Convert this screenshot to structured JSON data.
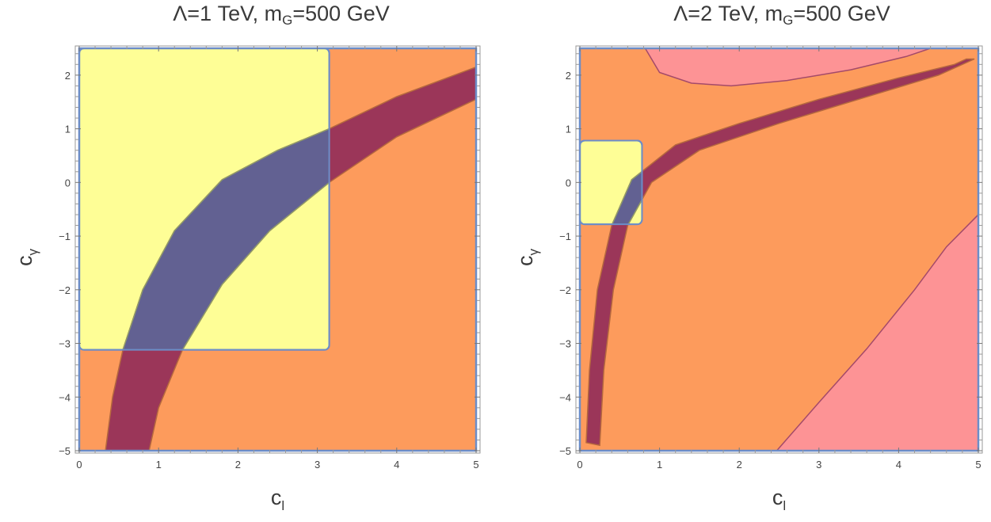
{
  "chart_data": [
    {
      "type": "region",
      "title": {
        "prefix": "Λ=1 TeV, m",
        "sub": "G",
        "suffix": "=500 GeV"
      },
      "xlabel": "c",
      "xlabel_sub": "l",
      "ylabel": "c",
      "ylabel_sub": "γ",
      "xlim": [
        0,
        5
      ],
      "ylim": [
        -5,
        2.5
      ],
      "xticks": [
        0,
        1,
        2,
        3,
        4,
        5
      ],
      "yticks": [
        -5,
        -4,
        -3,
        -2,
        -1,
        0,
        1,
        2
      ],
      "ytick_labels": [
        "−5",
        "−4",
        "−3",
        "−2",
        "−1",
        "0",
        "1",
        "2"
      ],
      "colors": {
        "background": "#fd9b5c",
        "box": "#fefe96",
        "band": "#9b3659",
        "overlap": "#626192",
        "frame": "#6c8dc8",
        "border": "#8a9a78"
      },
      "regions": {
        "box": {
          "x": [
            0,
            3.15
          ],
          "y": [
            -3.12,
            2.5
          ]
        },
        "band_lower": [
          [
            0.88,
            -5
          ],
          [
            1.0,
            -4.2
          ],
          [
            1.3,
            -3.12
          ],
          [
            1.8,
            -1.9
          ],
          [
            2.4,
            -0.9
          ],
          [
            3.15,
            0.0
          ],
          [
            4.0,
            0.85
          ],
          [
            5.0,
            1.55
          ]
        ],
        "band_upper": [
          [
            0.33,
            -5
          ],
          [
            0.42,
            -4.0
          ],
          [
            0.55,
            -3.12
          ],
          [
            0.8,
            -2.0
          ],
          [
            1.2,
            -0.9
          ],
          [
            1.8,
            0.05
          ],
          [
            2.5,
            0.6
          ],
          [
            3.15,
            1.0
          ],
          [
            4.0,
            1.6
          ],
          [
            5.0,
            2.15
          ]
        ]
      }
    },
    {
      "type": "region",
      "title": {
        "prefix": "Λ=2 TeV, m",
        "sub": "G",
        "suffix": "=500 GeV"
      },
      "xlabel": "c",
      "xlabel_sub": "l",
      "ylabel": "c",
      "ylabel_sub": "γ",
      "xlim": [
        0,
        5
      ],
      "ylim": [
        -5,
        2.5
      ],
      "xticks": [
        0,
        1,
        2,
        3,
        4,
        5
      ],
      "yticks": [
        -5,
        -4,
        -3,
        -2,
        -1,
        0,
        1,
        2
      ],
      "ytick_labels": [
        "−5",
        "−4",
        "−3",
        "−2",
        "−1",
        "0",
        "1",
        "2"
      ],
      "colors": {
        "background": "#fd9b5c",
        "box": "#fefe96",
        "band": "#9b3659",
        "overlap": "#626192",
        "pink": "#fd9395",
        "frame": "#6c8dc8",
        "pink_border": "#a44a6a"
      },
      "regions": {
        "box": {
          "x": [
            0,
            0.78
          ],
          "y": [
            -0.78,
            0.78
          ]
        },
        "band_lower": [
          [
            0.25,
            -4.9
          ],
          [
            0.3,
            -3.5
          ],
          [
            0.42,
            -2.0
          ],
          [
            0.6,
            -0.8
          ],
          [
            0.9,
            0.0
          ],
          [
            1.5,
            0.6
          ],
          [
            2.5,
            1.1
          ],
          [
            3.5,
            1.55
          ],
          [
            4.5,
            2.0
          ],
          [
            4.95,
            2.3
          ]
        ],
        "band_upper": [
          [
            0.08,
            -4.85
          ],
          [
            0.12,
            -3.5
          ],
          [
            0.22,
            -2.0
          ],
          [
            0.4,
            -0.8
          ],
          [
            0.65,
            0.05
          ],
          [
            1.2,
            0.7
          ],
          [
            2.0,
            1.1
          ],
          [
            3.0,
            1.55
          ],
          [
            4.0,
            1.95
          ],
          [
            4.7,
            2.2
          ],
          [
            4.85,
            2.3
          ]
        ],
        "pink_top": [
          [
            0.82,
            2.5
          ],
          [
            1.0,
            2.05
          ],
          [
            1.4,
            1.85
          ],
          [
            1.9,
            1.8
          ],
          [
            2.6,
            1.9
          ],
          [
            3.4,
            2.1
          ],
          [
            4.1,
            2.35
          ],
          [
            4.4,
            2.5
          ]
        ],
        "pink_bottom": [
          [
            2.47,
            -5
          ],
          [
            3.0,
            -4.1
          ],
          [
            3.6,
            -3.1
          ],
          [
            4.2,
            -2.0
          ],
          [
            4.6,
            -1.2
          ],
          [
            5.0,
            -0.6
          ]
        ]
      }
    }
  ]
}
